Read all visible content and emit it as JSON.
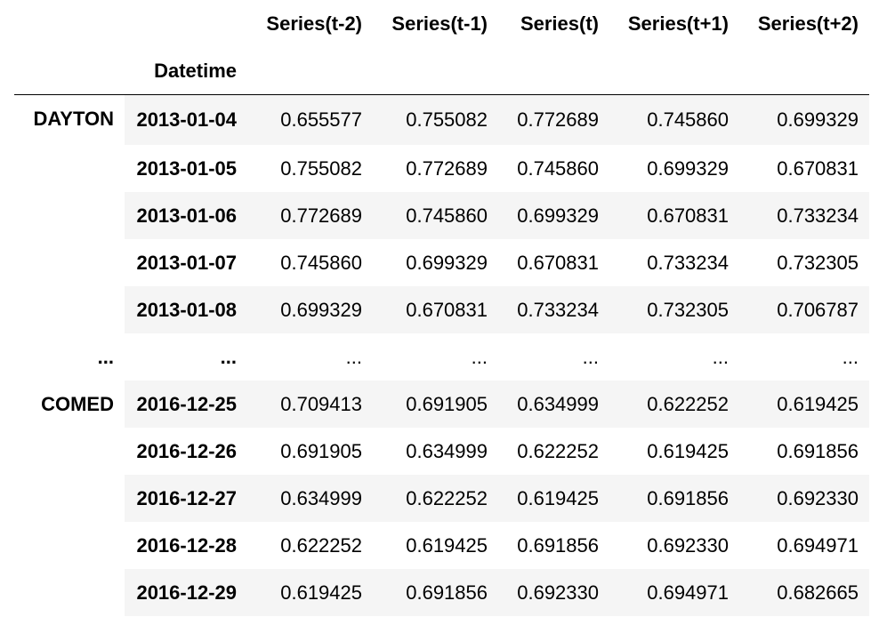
{
  "columns": [
    "Series(t-2)",
    "Series(t-1)",
    "Series(t)",
    "Series(t+1)",
    "Series(t+2)"
  ],
  "index_name": "Datetime",
  "groups": [
    {
      "name": "DAYTON",
      "rows": [
        {
          "date": "2013-01-04",
          "values": [
            "0.655577",
            "0.755082",
            "0.772689",
            "0.745860",
            "0.699329"
          ]
        },
        {
          "date": "2013-01-05",
          "values": [
            "0.755082",
            "0.772689",
            "0.745860",
            "0.699329",
            "0.670831"
          ]
        },
        {
          "date": "2013-01-06",
          "values": [
            "0.772689",
            "0.745860",
            "0.699329",
            "0.670831",
            "0.733234"
          ]
        },
        {
          "date": "2013-01-07",
          "values": [
            "0.745860",
            "0.699329",
            "0.670831",
            "0.733234",
            "0.732305"
          ]
        },
        {
          "date": "2013-01-08",
          "values": [
            "0.699329",
            "0.670831",
            "0.733234",
            "0.732305",
            "0.706787"
          ]
        }
      ]
    },
    {
      "name": "COMED",
      "rows": [
        {
          "date": "2016-12-25",
          "values": [
            "0.709413",
            "0.691905",
            "0.634999",
            "0.622252",
            "0.619425"
          ]
        },
        {
          "date": "2016-12-26",
          "values": [
            "0.691905",
            "0.634999",
            "0.622252",
            "0.619425",
            "0.691856"
          ]
        },
        {
          "date": "2016-12-27",
          "values": [
            "0.634999",
            "0.622252",
            "0.619425",
            "0.691856",
            "0.692330"
          ]
        },
        {
          "date": "2016-12-28",
          "values": [
            "0.622252",
            "0.619425",
            "0.691856",
            "0.692330",
            "0.694971"
          ]
        },
        {
          "date": "2016-12-29",
          "values": [
            "0.619425",
            "0.691856",
            "0.692330",
            "0.694971",
            "0.682665"
          ]
        }
      ]
    }
  ],
  "ellipsis": {
    "group": "...",
    "date": "...",
    "values": [
      "...",
      "...",
      "...",
      "...",
      "..."
    ]
  }
}
